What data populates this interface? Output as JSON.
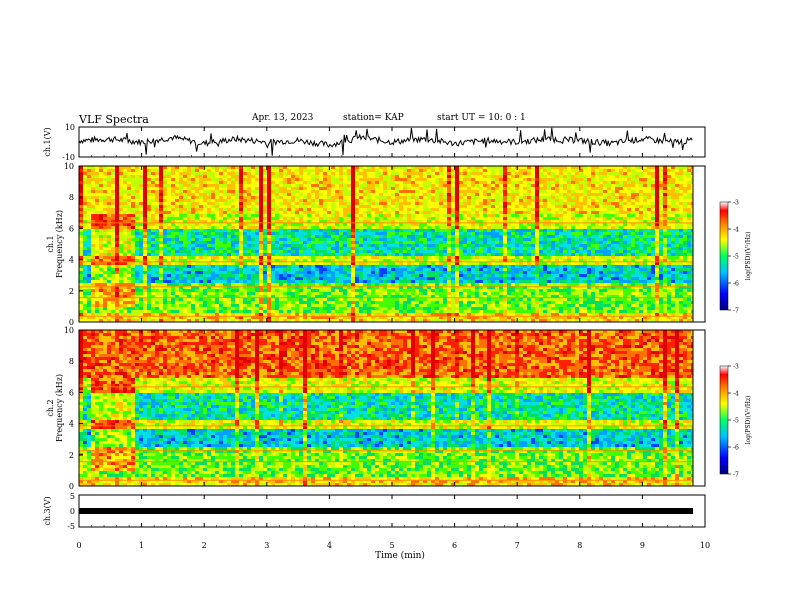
{
  "header": {
    "title": "VLF Spectra",
    "date": "Apr. 13, 2023",
    "station": "station= KAP",
    "start": "start  UT  =   10: 0  : 1"
  },
  "colors": {
    "spectral": [
      "#0000cc",
      "#0040ff",
      "#00a0ff",
      "#00e0e0",
      "#00e060",
      "#40ff00",
      "#c0ff00",
      "#ffff00",
      "#ffc000",
      "#ff7000",
      "#ff2000",
      "#e00000"
    ]
  },
  "chart_data": [
    {
      "type": "line",
      "panel": "ch1-waveform",
      "ylabel": "ch.1(V)",
      "ylim": [
        -10,
        10
      ],
      "yticks": [
        "10",
        "-10"
      ],
      "x": [
        0,
        0.5,
        1,
        1.5,
        2,
        2.5,
        3,
        3.5,
        4,
        4.5,
        5,
        5.5,
        6,
        6.5,
        7,
        7.5,
        8,
        8.5,
        9,
        9.5,
        9.8
      ],
      "values": [
        1,
        2,
        0,
        3,
        -1,
        2,
        0,
        1,
        -2,
        3,
        0,
        2,
        -1,
        1,
        0,
        2,
        1,
        -1,
        2,
        0,
        1
      ]
    },
    {
      "type": "heatmap",
      "panel": "ch1-spectrogram",
      "ylabel": "ch.1 Frequency (kHz)",
      "ylim": [
        0,
        10
      ],
      "yticks": [
        "0",
        "2",
        "4",
        "6",
        "8",
        "10"
      ],
      "colorbar": {
        "range": [
          -7,
          -3
        ],
        "ticks": [
          "-3",
          "-4",
          "-5",
          "-6",
          "-7"
        ],
        "label": "log(PSD)(V²/Hz)"
      }
    },
    {
      "type": "heatmap",
      "panel": "ch2-spectrogram",
      "ylabel": "ch.2 Frequency (kHz)",
      "ylim": [
        0,
        10
      ],
      "yticks": [
        "0",
        "2",
        "4",
        "6",
        "8",
        "10"
      ],
      "colorbar": {
        "range": [
          -7,
          -3
        ],
        "ticks": [
          "-3",
          "-4",
          "-5",
          "-6",
          "-7"
        ],
        "label": "log(PSD)(V²/Hz)"
      }
    },
    {
      "type": "line",
      "panel": "ch3-waveform",
      "ylabel": "ch.3(V)",
      "ylim": [
        -5,
        5
      ],
      "yticks": [
        "5",
        "0",
        "-5"
      ],
      "x": [
        0,
        9.8
      ],
      "values": [
        -1,
        -1
      ]
    }
  ],
  "xaxis": {
    "label": "Time (min)",
    "xlim": [
      0,
      10
    ],
    "ticks": [
      "0",
      "1",
      "2",
      "3",
      "4",
      "5",
      "6",
      "7",
      "8",
      "9",
      "10"
    ]
  }
}
